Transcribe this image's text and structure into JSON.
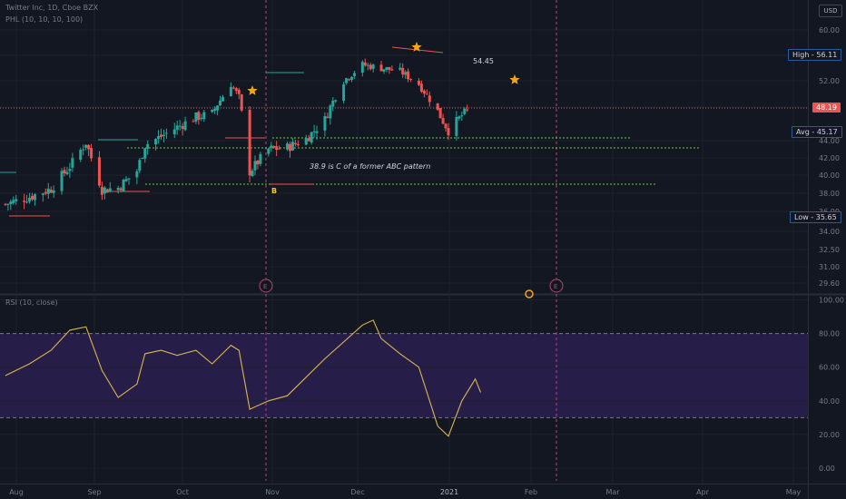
{
  "header": {
    "symbol_line": "Twitter Inc, 1D, Cboe BZX",
    "indicator_line": "PHL (10, 10, 10, 100)",
    "currency": "USD",
    "rsi_label": "RSI (10, close)"
  },
  "price_axis": {
    "ticks": [
      "60.00",
      "56.00",
      "52.00",
      "48.00",
      "44.00",
      "42.00",
      "40.00",
      "38.00",
      "36.00",
      "34.00",
      "32.50",
      "31.00",
      "29.60"
    ],
    "tags": {
      "high": "High",
      "high_value": "56.11",
      "last": "48.19",
      "avg": "Avg",
      "avg_value": "45.17",
      "low": "Low",
      "low_value": "35.65"
    }
  },
  "rsi_axis": {
    "ticks": [
      "100.00",
      "80.00",
      "60.00",
      "40.00",
      "20.00",
      "0.00"
    ]
  },
  "time_axis": {
    "labels": [
      "Aug",
      "Sep",
      "Oct",
      "Nov",
      "Dec",
      "2021",
      "Feb",
      "Mar",
      "Apr",
      "May"
    ]
  },
  "annotations": {
    "abc_text": "38.9 is C of a former ABC pattern",
    "peak_text": "54.45",
    "b_label": "B",
    "earnings_marker": "E"
  },
  "colors": {
    "background": "#131722",
    "up": "#26a69a",
    "down": "#ef5350",
    "rsi_line": "#d9b64f",
    "rsi_band": "#2a1f4f",
    "level_green": "#5fd13a",
    "star": "#f7a21b"
  },
  "chart_data": [
    {
      "type": "candlestick",
      "title": "Twitter Inc, 1D, Cboe BZX",
      "y_range": [
        29.6,
        62
      ],
      "x_range": [
        "2020-08-01",
        "2021-05-15"
      ],
      "approx_close_path": [
        {
          "date": "2020-08-03",
          "close": 36.8
        },
        {
          "date": "2020-08-12",
          "close": 37.6
        },
        {
          "date": "2020-08-20",
          "close": 38.5
        },
        {
          "date": "2020-08-27",
          "close": 41.0
        },
        {
          "date": "2020-09-02",
          "close": 43.8
        },
        {
          "date": "2020-09-08",
          "close": 38.4
        },
        {
          "date": "2020-09-14",
          "close": 38.6
        },
        {
          "date": "2020-09-21",
          "close": 40.5
        },
        {
          "date": "2020-09-24",
          "close": 43.5
        },
        {
          "date": "2020-09-30",
          "close": 44.5
        },
        {
          "date": "2020-10-06",
          "close": 45.6
        },
        {
          "date": "2020-10-13",
          "close": 46.8
        },
        {
          "date": "2020-10-19",
          "close": 47.2
        },
        {
          "date": "2020-10-26",
          "close": 51.5
        },
        {
          "date": "2020-10-29",
          "close": 49.5
        },
        {
          "date": "2020-11-02",
          "close": 40.4
        },
        {
          "date": "2020-11-09",
          "close": 43.0
        },
        {
          "date": "2020-11-16",
          "close": 43.2
        },
        {
          "date": "2020-11-23",
          "close": 44.2
        },
        {
          "date": "2020-11-30",
          "close": 46.5
        },
        {
          "date": "2020-12-07",
          "close": 52.0
        },
        {
          "date": "2020-12-14",
          "close": 54.5
        },
        {
          "date": "2020-12-21",
          "close": 54.0
        },
        {
          "date": "2020-12-28",
          "close": 53.5
        },
        {
          "date": "2021-01-04",
          "close": 51.5
        },
        {
          "date": "2021-01-11",
          "close": 47.5
        },
        {
          "date": "2021-01-15",
          "close": 45.2
        },
        {
          "date": "2021-01-20",
          "close": 47.0
        },
        {
          "date": "2021-01-25",
          "close": 48.19
        }
      ],
      "high": 56.11,
      "low": 35.65,
      "avg": 45.17,
      "last": 48.19
    },
    {
      "type": "line",
      "title": "RSI (10, close)",
      "y_range": [
        0,
        100
      ],
      "band": [
        30,
        80
      ],
      "points": [
        {
          "date": "2020-08-03",
          "value": 55
        },
        {
          "date": "2020-08-12",
          "value": 62
        },
        {
          "date": "2020-08-20",
          "value": 70
        },
        {
          "date": "2020-08-27",
          "value": 82
        },
        {
          "date": "2020-09-02",
          "value": 84
        },
        {
          "date": "2020-09-08",
          "value": 58
        },
        {
          "date": "2020-09-14",
          "value": 42
        },
        {
          "date": "2020-09-21",
          "value": 50
        },
        {
          "date": "2020-09-24",
          "value": 68
        },
        {
          "date": "2020-09-30",
          "value": 70
        },
        {
          "date": "2020-10-06",
          "value": 67
        },
        {
          "date": "2020-10-13",
          "value": 70
        },
        {
          "date": "2020-10-19",
          "value": 62
        },
        {
          "date": "2020-10-26",
          "value": 73
        },
        {
          "date": "2020-10-29",
          "value": 70
        },
        {
          "date": "2020-11-02",
          "value": 35
        },
        {
          "date": "2020-11-09",
          "value": 40
        },
        {
          "date": "2020-11-16",
          "value": 43
        },
        {
          "date": "2020-11-23",
          "value": 54
        },
        {
          "date": "2020-11-30",
          "value": 65
        },
        {
          "date": "2020-12-07",
          "value": 75
        },
        {
          "date": "2020-12-14",
          "value": 85
        },
        {
          "date": "2020-12-18",
          "value": 88
        },
        {
          "date": "2020-12-21",
          "value": 77
        },
        {
          "date": "2020-12-28",
          "value": 68
        },
        {
          "date": "2021-01-04",
          "value": 60
        },
        {
          "date": "2021-01-11",
          "value": 25
        },
        {
          "date": "2021-01-15",
          "value": 19
        },
        {
          "date": "2021-01-20",
          "value": 40
        },
        {
          "date": "2021-01-25",
          "value": 53
        },
        {
          "date": "2021-01-27",
          "value": 45
        }
      ]
    }
  ]
}
